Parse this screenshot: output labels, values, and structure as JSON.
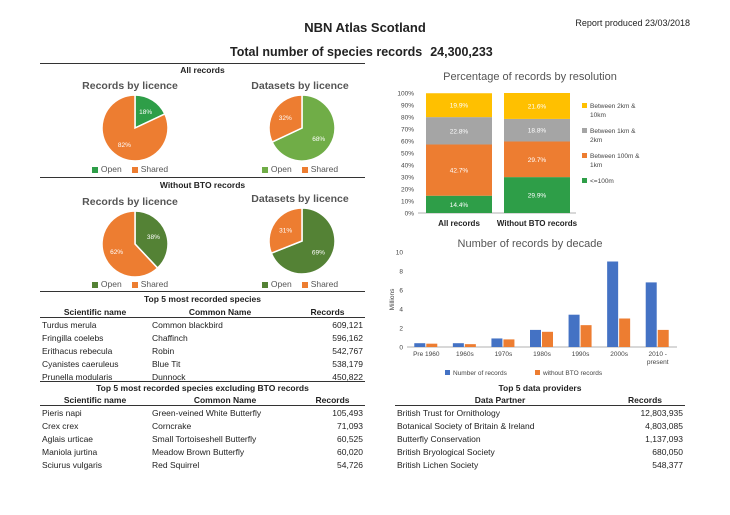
{
  "header": {
    "title": "NBN Atlas Scotland",
    "report_date": "Report produced 23/03/2018",
    "total_label": "Total number of species records",
    "total_value": "24,300,233"
  },
  "sections": {
    "all_records": "All records",
    "without_bto": "Without BTO records"
  },
  "legend": {
    "open": "Open",
    "shared": "Shared"
  },
  "colors": {
    "open_green": "#2e9e48",
    "light_green": "#70ad47",
    "dark_green": "#548235",
    "orange": "#ed7d31",
    "gray": "#a5a5a5",
    "yellow": "#ffc000",
    "blue": "#4472c4"
  },
  "chart_data": [
    {
      "type": "pie",
      "title": "Records by licence",
      "group": "All records",
      "labels": [
        "Open",
        "Shared"
      ],
      "values": [
        18,
        82
      ],
      "data_labels": [
        "18%",
        "82%"
      ]
    },
    {
      "type": "pie",
      "title": "Datasets by licence",
      "group": "All records",
      "labels": [
        "Open",
        "Shared"
      ],
      "values": [
        68,
        32
      ],
      "data_labels": [
        "68%",
        "32%"
      ]
    },
    {
      "type": "pie",
      "title": "Records by licence",
      "group": "Without BTO records",
      "labels": [
        "Open",
        "Shared"
      ],
      "values": [
        38,
        62
      ],
      "data_labels": [
        "38%",
        "62%"
      ]
    },
    {
      "type": "pie",
      "title": "Datasets by licence",
      "group": "Without BTO records",
      "labels": [
        "Open",
        "Shared"
      ],
      "values": [
        69,
        31
      ],
      "data_labels": [
        "69%",
        "31%"
      ]
    },
    {
      "type": "bar",
      "stacked": true,
      "title": "Percentage of records by resolution",
      "categories": [
        "All records",
        "Without BTO records"
      ],
      "yticks": [
        "0%",
        "10%",
        "20%",
        "30%",
        "40%",
        "50%",
        "60%",
        "70%",
        "80%",
        "90%",
        "100%"
      ],
      "ylim": [
        0,
        100
      ],
      "series": [
        {
          "name": "<=100m",
          "values": [
            14.4,
            29.9
          ],
          "labels": [
            "14.4%",
            "29.9%"
          ]
        },
        {
          "name": "Between 100m & 1km",
          "values": [
            42.7,
            29.7
          ],
          "labels": [
            "42.7%",
            "29.7%"
          ]
        },
        {
          "name": "Between 1km & 2km",
          "values": [
            22.8,
            18.8
          ],
          "labels": [
            "22.8%",
            "18.8%"
          ]
        },
        {
          "name": "Between 2km & 10km",
          "values": [
            19.9,
            21.6
          ],
          "labels": [
            "19.9%",
            "21.6%"
          ]
        }
      ],
      "legend_position": "right"
    },
    {
      "type": "bar",
      "title": "Number of records by decade",
      "ylabel": "Millions",
      "categories": [
        "Pre 1960",
        "1960s",
        "1970s",
        "1980s",
        "1990s",
        "2000s",
        "2010 - present"
      ],
      "yticks": [
        "0",
        "2",
        "4",
        "6",
        "8",
        "10"
      ],
      "ylim": [
        0,
        10
      ],
      "series": [
        {
          "name": "Number of records",
          "values": [
            0.4,
            0.4,
            0.9,
            1.8,
            3.4,
            9.0,
            6.8
          ]
        },
        {
          "name": "without BTO records",
          "values": [
            0.35,
            0.3,
            0.8,
            1.6,
            2.3,
            3.0,
            1.8
          ]
        }
      ],
      "legend_position": "bottom"
    }
  ],
  "tables": {
    "top5": {
      "title": "Top 5 most recorded species",
      "headers": [
        "Scientific name",
        "Common Name",
        "Records"
      ],
      "rows": [
        [
          "Turdus merula",
          "Common blackbird",
          "609,121"
        ],
        [
          "Fringilla coelebs",
          "Chaffinch",
          "596,162"
        ],
        [
          "Erithacus rebecula",
          "Robin",
          "542,767"
        ],
        [
          "Cyanistes caeruleus",
          "Blue Tit",
          "538,179"
        ],
        [
          "Prunella modularis",
          "Dunnock",
          "450,822"
        ]
      ]
    },
    "top5_no_bto": {
      "title": "Top 5 most recorded species excluding BTO records",
      "headers": [
        "Scientific name",
        "Common Name",
        "Records"
      ],
      "rows": [
        [
          "Pieris napi",
          "Green-veined White Butterfly",
          "105,493"
        ],
        [
          "Crex crex",
          "Corncrake",
          "71,093"
        ],
        [
          "Aglais urticae",
          "Small Tortoiseshell Butterfly",
          "60,525"
        ],
        [
          "Maniola jurtina",
          "Meadow Brown Butterfly",
          "60,020"
        ],
        [
          "Sciurus vulgaris",
          "Red Squirrel",
          "54,726"
        ]
      ]
    },
    "providers": {
      "title": "Top 5 data providers",
      "headers": [
        "Data Partner",
        "Records"
      ],
      "rows": [
        [
          "British Trust for Ornithology",
          "12,803,935"
        ],
        [
          "Botanical Society of Britain & Ireland",
          "4,803,085"
        ],
        [
          "Butterfly Conservation",
          "1,137,093"
        ],
        [
          "British Bryological Society",
          "680,050"
        ],
        [
          "British Lichen Society",
          "548,377"
        ]
      ]
    }
  }
}
